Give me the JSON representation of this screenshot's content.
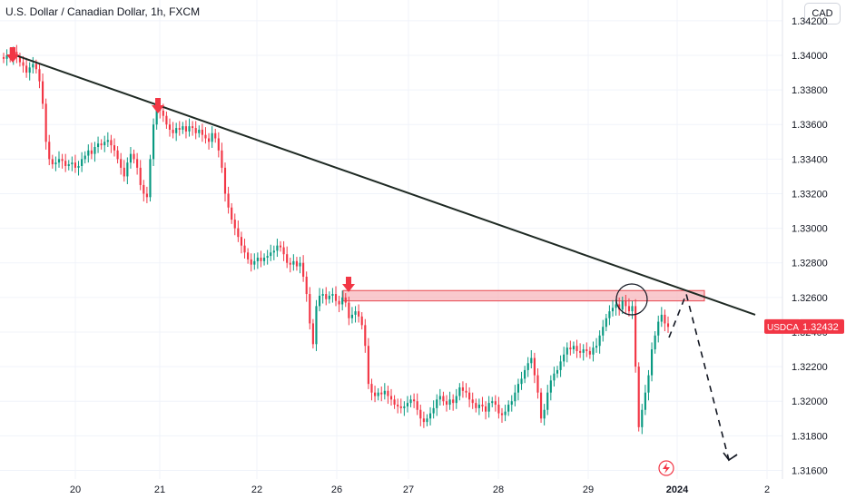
{
  "header": {
    "title": "U.S. Dollar / Canadian Dollar, 1h, FXCM",
    "currency_badge": "CAD"
  },
  "colors": {
    "up": "#089981",
    "down": "#f23645",
    "grid": "#f0f3fa",
    "trendline": "#1f2a24",
    "zone_fill": "#f7b7bc",
    "zone_stroke": "#e8474f",
    "arrow": "#f23645",
    "price_tag": "#f23645",
    "projection": "#131722"
  },
  "icons": {
    "event_marker": "lightning-circle-icon"
  },
  "chart_data": {
    "type": "candlestick",
    "symbol": "FXCM:USDCAD",
    "timeframe": "1h",
    "last_price_label": "USDCAD",
    "last_price": "1.32432",
    "ylim": [
      1.3155,
      1.3432
    ],
    "y_ticks": [
      "1.34200",
      "1.34000",
      "1.33800",
      "1.33600",
      "1.33400",
      "1.33200",
      "1.33000",
      "1.32800",
      "1.32600",
      "1.32400",
      "1.32200",
      "1.32000",
      "1.31800",
      "1.31600"
    ],
    "x_ticks": [
      {
        "label": "20",
        "index": 0
      },
      {
        "label": "21",
        "index": 1
      },
      {
        "label": "22",
        "index": 2
      },
      {
        "label": "26",
        "index": 3
      },
      {
        "label": "27",
        "index": 4
      },
      {
        "label": "28",
        "index": 5
      },
      {
        "label": "29",
        "index": 6
      },
      {
        "label": "2024",
        "index": 7,
        "bold": true
      },
      {
        "label": "2",
        "index": 8
      }
    ],
    "closes": [
      1.3398,
      1.34,
      1.3399,
      1.3402,
      1.3399,
      1.3396,
      1.3394,
      1.339,
      1.3393,
      1.3395,
      1.3392,
      1.3385,
      1.3372,
      1.335,
      1.334,
      1.3337,
      1.3338,
      1.334,
      1.3339,
      1.3336,
      1.3337,
      1.3338,
      1.3335,
      1.3336,
      1.334,
      1.3342,
      1.3345,
      1.3343,
      1.3347,
      1.3349,
      1.3348,
      1.335,
      1.3351,
      1.3348,
      1.3345,
      1.334,
      1.3335,
      1.333,
      1.3338,
      1.3343,
      1.334,
      1.3335,
      1.3325,
      1.332,
      1.3318,
      1.334,
      1.336,
      1.337,
      1.3368,
      1.3365,
      1.336,
      1.3357,
      1.3355,
      1.3358,
      1.3357,
      1.3359,
      1.3356,
      1.3359,
      1.3358,
      1.3355,
      1.3357,
      1.3354,
      1.3352,
      1.335,
      1.3355,
      1.3352,
      1.3345,
      1.3335,
      1.332,
      1.3312,
      1.3305,
      1.33,
      1.3295,
      1.329,
      1.3286,
      1.3282,
      1.3279,
      1.3281,
      1.3283,
      1.3281,
      1.3283,
      1.3284,
      1.3286,
      1.3287,
      1.329,
      1.3289,
      1.3285,
      1.328,
      1.3279,
      1.3281,
      1.3278,
      1.328,
      1.3272,
      1.3262,
      1.3245,
      1.3233,
      1.3255,
      1.3261,
      1.3262,
      1.3259,
      1.3261,
      1.3262,
      1.3258,
      1.3256,
      1.326,
      1.3257,
      1.3248,
      1.325,
      1.3252,
      1.3249,
      1.3244,
      1.3232,
      1.321,
      1.3205,
      1.3203,
      1.3205,
      1.3204,
      1.3206,
      1.3203,
      1.3201,
      1.3198,
      1.3197,
      1.3196,
      1.3197,
      1.3199,
      1.3201,
      1.32,
      1.3195,
      1.319,
      1.3188,
      1.319,
      1.3193,
      1.3196,
      1.3201,
      1.3203,
      1.32,
      1.3198,
      1.3201,
      1.3199,
      1.3203,
      1.3208,
      1.3206,
      1.3205,
      1.3201,
      1.3199,
      1.3196,
      1.3198,
      1.3197,
      1.3194,
      1.3199,
      1.32,
      1.3198,
      1.3193,
      1.3192,
      1.3194,
      1.3198,
      1.32,
      1.3205,
      1.321,
      1.3213,
      1.3218,
      1.3222,
      1.3225,
      1.3215,
      1.3205,
      1.319,
      1.3195,
      1.3205,
      1.3212,
      1.3216,
      1.3218,
      1.3223,
      1.3227,
      1.3231,
      1.323,
      1.3232,
      1.3229,
      1.3228,
      1.323,
      1.3229,
      1.3227,
      1.3231,
      1.3232,
      1.3238,
      1.3243,
      1.3248,
      1.3252,
      1.3254,
      1.3256,
      1.3253,
      1.3258,
      1.3255,
      1.3252,
      1.3255,
      1.322,
      1.3185,
      1.3195,
      1.3205,
      1.3215,
      1.323,
      1.3238,
      1.3246,
      1.325,
      1.3245,
      1.3243
    ],
    "price_levels": {
      "zone_bottom": 1.3258,
      "zone_top": 1.3264,
      "trendline_start": 1.3401,
      "trendline_end": 1.325,
      "projection_peak": 1.3262,
      "projection_low": 1.3166
    },
    "annotations": [
      "down-arrow at first high",
      "down-arrow at second high",
      "down-arrow at zone retest",
      "circle at zone rejection",
      "dashed projected move down"
    ]
  }
}
